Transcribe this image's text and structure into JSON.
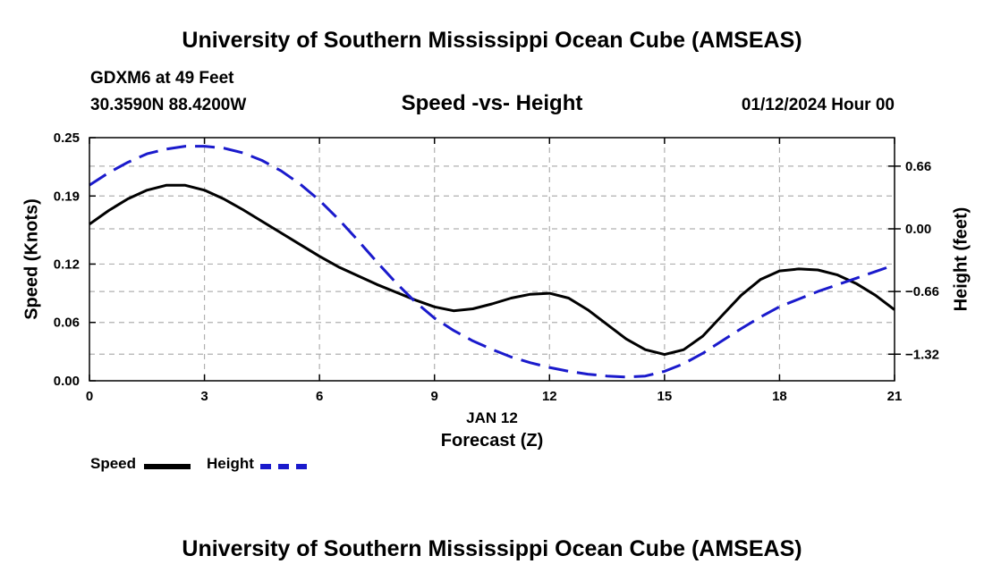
{
  "header": {
    "title": "University of Southern Mississippi Ocean Cube (AMSEAS)",
    "station": "GDXM6 at 49 Feet",
    "coords": "30.3590N   88.4200W",
    "date": "01/12/2024 Hour 00"
  },
  "footer": {
    "title": "University of Southern Mississippi Ocean Cube (AMSEAS)"
  },
  "legend": {
    "speed_label": "Speed",
    "height_label": "Height"
  },
  "colors": {
    "speed": "#000000",
    "height": "#1a1acc",
    "grid": "#b0b0b0"
  },
  "chart_data": {
    "type": "line",
    "title": "Speed -vs- Height",
    "xlabel": "Forecast (Z)",
    "xlabel_date": "JAN 12",
    "ylabel": "Speed (Knots)",
    "y2label": "Height (feet)",
    "xlim": [
      0,
      21
    ],
    "ylim": [
      0,
      0.25
    ],
    "y2lim": [
      -1.6,
      0.96
    ],
    "xticks": [
      0,
      3,
      6,
      9,
      12,
      15,
      18,
      21
    ],
    "xtick_labels": [
      "0",
      "3",
      "6",
      "9",
      "12",
      "15",
      "18",
      "21"
    ],
    "yticks": [
      0.0,
      0.06,
      0.12,
      0.19,
      0.25
    ],
    "ytick_labels": [
      "0.00",
      "0.06",
      "0.12",
      "0.19",
      "0.25"
    ],
    "y2ticks": [
      0.66,
      0.0,
      -0.66,
      -1.32
    ],
    "y2tick_labels": [
      "0.66",
      "0.00",
      "−0.66",
      "−1.32"
    ],
    "grid": true,
    "series": [
      {
        "name": "Speed",
        "axis": "left",
        "style": "solid",
        "x": [
          0,
          0.5,
          1,
          1.5,
          2,
          2.5,
          3,
          3.5,
          4,
          4.5,
          5,
          5.5,
          6,
          6.5,
          7,
          7.5,
          8,
          8.5,
          9,
          9.5,
          10,
          10.5,
          11,
          11.5,
          12,
          12.5,
          13,
          13.5,
          14,
          14.5,
          15,
          15.5,
          16,
          16.5,
          17,
          17.5,
          18,
          18.5,
          19,
          19.5,
          20,
          20.5,
          21
        ],
        "values": [
          0.161,
          0.175,
          0.187,
          0.196,
          0.201,
          0.201,
          0.196,
          0.187,
          0.176,
          0.164,
          0.152,
          0.14,
          0.128,
          0.117,
          0.108,
          0.099,
          0.091,
          0.083,
          0.076,
          0.072,
          0.074,
          0.079,
          0.085,
          0.089,
          0.09,
          0.085,
          0.073,
          0.058,
          0.043,
          0.032,
          0.027,
          0.032,
          0.046,
          0.067,
          0.088,
          0.104,
          0.113,
          0.115,
          0.114,
          0.109,
          0.1,
          0.088,
          0.073
        ]
      },
      {
        "name": "Height",
        "axis": "right",
        "style": "dashed",
        "x": [
          0,
          0.5,
          1,
          1.5,
          2,
          2.5,
          3,
          3.5,
          4,
          4.5,
          5,
          5.5,
          6,
          6.5,
          7,
          7.5,
          8,
          8.5,
          9,
          9.5,
          10,
          10.5,
          11,
          11.5,
          12,
          12.5,
          13,
          13.5,
          14,
          14.5,
          15,
          15.5,
          16,
          16.5,
          17,
          17.5,
          18,
          18.5,
          19,
          19.5,
          20,
          20.5,
          21
        ],
        "values": [
          0.46,
          0.59,
          0.7,
          0.79,
          0.84,
          0.87,
          0.87,
          0.85,
          0.8,
          0.72,
          0.61,
          0.47,
          0.3,
          0.1,
          -0.12,
          -0.35,
          -0.57,
          -0.77,
          -0.94,
          -1.07,
          -1.18,
          -1.27,
          -1.35,
          -1.41,
          -1.46,
          -1.5,
          -1.53,
          -1.55,
          -1.56,
          -1.55,
          -1.5,
          -1.42,
          -1.31,
          -1.18,
          -1.05,
          -0.93,
          -0.82,
          -0.74,
          -0.66,
          -0.59,
          -0.52,
          -0.45,
          -0.38
        ]
      }
    ]
  }
}
